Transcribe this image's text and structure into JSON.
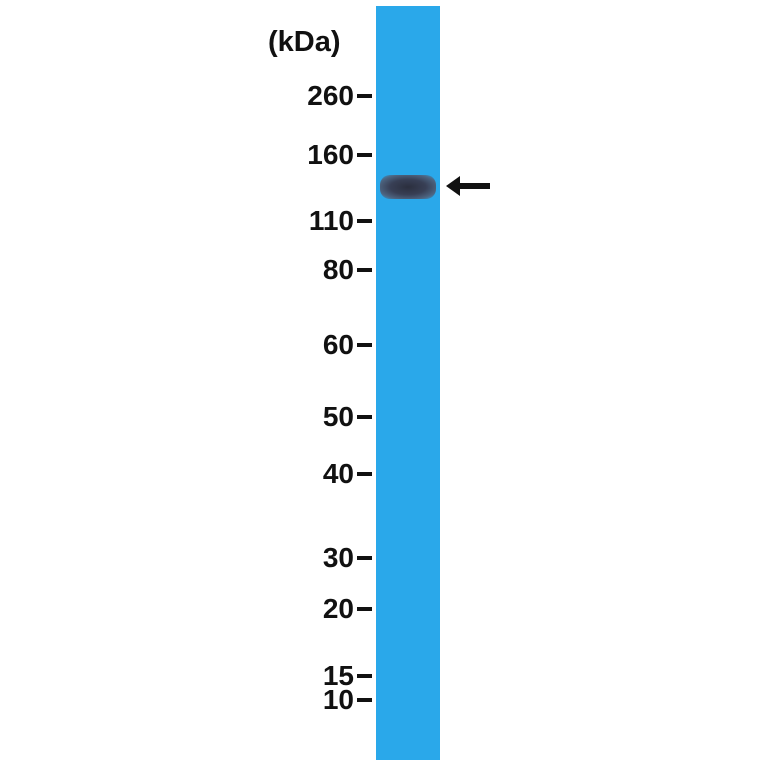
{
  "unit_label": "(kDa)",
  "markers": [
    "260",
    "160",
    "110",
    "80",
    "60",
    "50",
    "40",
    "30",
    "20",
    "15",
    "10"
  ],
  "colors": {
    "lane": "#2aa8ea",
    "band": "#2b2f3e",
    "text": "#111111"
  },
  "band_marker_icon": "arrow-left-icon"
}
